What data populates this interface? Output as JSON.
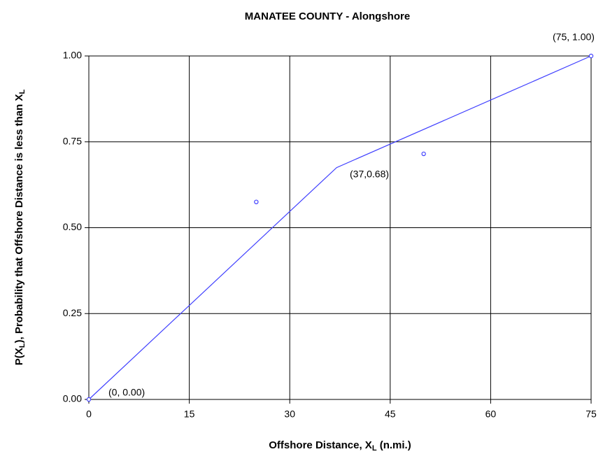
{
  "chart_data": {
    "type": "line",
    "title": "MANATEE  COUNTY -  Alongshore",
    "x_label": {
      "text": "Offshore  Distance, X",
      "sub": "L",
      "rest": " (n.mi.)"
    },
    "y_label": {
      "text": "P(X",
      "sub": "L",
      "rest": "), Probability that Offshore  Distance is less than X",
      "sub2": "L"
    },
    "series": [
      {
        "mode": "line",
        "color": "#4040ff",
        "x": [
          0,
          37,
          75
        ],
        "values": [
          0,
          0.675,
          1.0
        ]
      },
      {
        "mode": "markers",
        "color": "#4040ff",
        "x": [
          0,
          25,
          50,
          75
        ],
        "values": [
          0,
          0.575,
          0.715,
          1.0
        ]
      }
    ],
    "annotations": [
      "(75, 1.00)",
      "(37,0.68)",
      "(0, 0.00)"
    ],
    "xlim": [
      0,
      75
    ],
    "xticks": [
      0,
      15,
      30,
      45,
      60,
      75
    ],
    "ylim": [
      0,
      1
    ],
    "yticks": [
      {
        "value": 0,
        "label": "0.00"
      },
      {
        "value": 0.25,
        "label": "0.25"
      },
      {
        "value": 0.5,
        "label": "0.50"
      },
      {
        "value": 0.75,
        "label": "0.75"
      },
      {
        "value": 1,
        "label": "1.00"
      }
    ],
    "grid": true
  }
}
